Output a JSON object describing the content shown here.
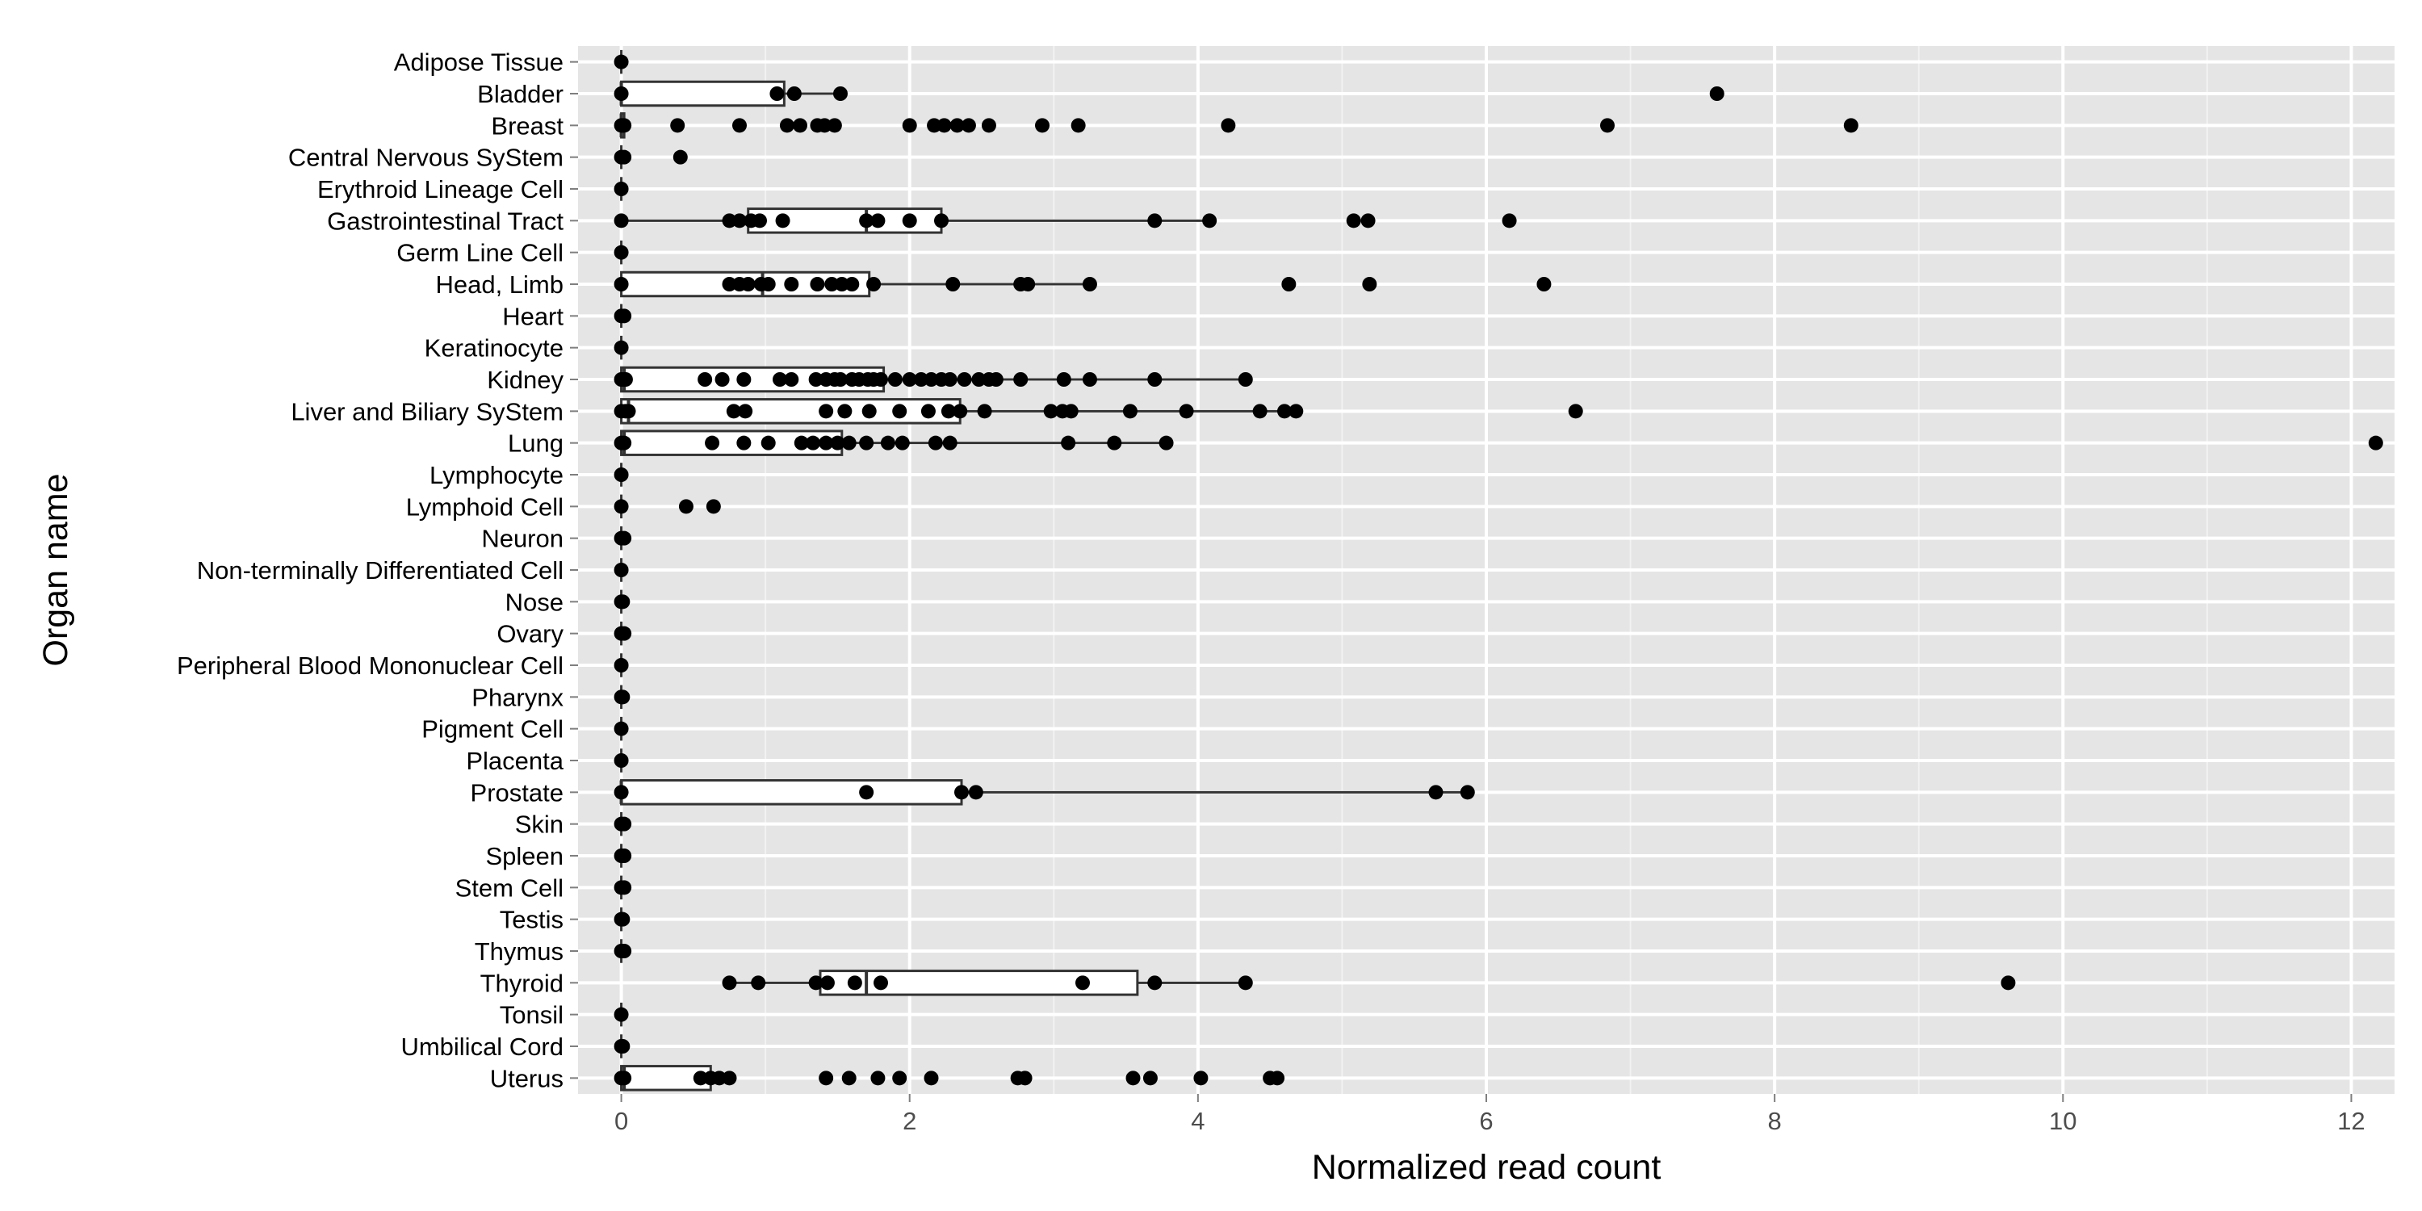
{
  "chart_data": {
    "type": "boxplot",
    "xlabel": "Normalized read count",
    "ylabel": "Organ name",
    "xlim": [
      -0.3,
      12.3
    ],
    "x_ticks": [
      0,
      2,
      4,
      6,
      8,
      10,
      12
    ],
    "grid": true,
    "colors": {
      "panel": "#e5e5e5",
      "grid_major": "#ffffff",
      "grid_minor": "#f2f2f2",
      "box_fill": "#ffffff",
      "line": "#333333",
      "point": "#000000",
      "tick_text": "#4d4d4d",
      "tick_mark": "#7f7f7f"
    },
    "categories": [
      {
        "name": "Adipose Tissue",
        "box": null,
        "points": [
          0
        ]
      },
      {
        "name": "Bladder",
        "box": {
          "q1": 0,
          "median": 0,
          "q3": 1.13,
          "wlow": 0,
          "whigh": 1.52
        },
        "points": [
          0,
          1.08,
          1.2,
          1.52,
          7.6
        ]
      },
      {
        "name": "Breast",
        "box": {
          "q1": 0,
          "median": 0,
          "q3": 0.02,
          "wlow": 0,
          "whigh": 0.02
        },
        "points": [
          0,
          0.01,
          0.02,
          0.39,
          0.82,
          1.15,
          1.24,
          1.36,
          1.41,
          1.48,
          2.0,
          2.17,
          2.24,
          2.33,
          2.41,
          2.55,
          2.92,
          3.17,
          4.21,
          6.84,
          8.53
        ]
      },
      {
        "name": "Central Nervous SyStem",
        "box": null,
        "points": [
          0,
          0.02,
          0.41
        ]
      },
      {
        "name": "Erythroid Lineage Cell",
        "box": null,
        "points": [
          0
        ]
      },
      {
        "name": "Gastrointestinal Tract",
        "box": {
          "q1": 0.88,
          "median": 1.7,
          "q3": 2.22,
          "wlow": 0,
          "whigh": 4.08
        },
        "points": [
          0,
          0.75,
          0.82,
          0.9,
          0.96,
          1.12,
          1.7,
          1.78,
          2.0,
          2.22,
          3.7,
          4.08,
          5.08,
          5.18,
          6.16
        ]
      },
      {
        "name": "Germ Line Cell",
        "box": null,
        "points": [
          0
        ]
      },
      {
        "name": "Head, Limb",
        "box": {
          "q1": 0,
          "median": 0.98,
          "q3": 1.72,
          "wlow": 0,
          "whigh": 3.25
        },
        "points": [
          0,
          0.75,
          0.82,
          0.88,
          0.97,
          1.02,
          1.18,
          1.36,
          1.46,
          1.53,
          1.6,
          1.75,
          2.3,
          2.77,
          2.82,
          3.25,
          4.63,
          5.19,
          6.4
        ]
      },
      {
        "name": "Heart",
        "box": null,
        "points": [
          0,
          0.02
        ]
      },
      {
        "name": "Keratinocyte",
        "box": null,
        "points": [
          0
        ]
      },
      {
        "name": "Kidney",
        "box": {
          "q1": 0,
          "median": 0.02,
          "q3": 1.82,
          "wlow": 0,
          "whigh": 4.33
        },
        "points": [
          0,
          0.02,
          0.03,
          0.58,
          0.7,
          0.85,
          1.1,
          1.18,
          1.35,
          1.42,
          1.48,
          1.52,
          1.6,
          1.65,
          1.71,
          1.75,
          1.8,
          1.9,
          2.0,
          2.08,
          2.15,
          2.22,
          2.28,
          2.38,
          2.48,
          2.55,
          2.6,
          2.77,
          3.07,
          3.25,
          3.7,
          4.33
        ]
      },
      {
        "name": "Liver and Biliary SyStem",
        "box": {
          "q1": 0,
          "median": 0.05,
          "q3": 2.35,
          "wlow": 0,
          "whigh": 4.68
        },
        "points": [
          0,
          0.03,
          0.05,
          0.78,
          0.86,
          1.42,
          1.55,
          1.72,
          1.93,
          2.13,
          2.27,
          2.35,
          2.52,
          2.98,
          3.06,
          3.12,
          3.53,
          3.92,
          4.43,
          4.6,
          4.68,
          6.62
        ]
      },
      {
        "name": "Lung",
        "box": {
          "q1": 0,
          "median": 0.02,
          "q3": 1.53,
          "wlow": 0,
          "whigh": 3.78
        },
        "points": [
          0,
          0.02,
          0.63,
          0.85,
          1.02,
          1.25,
          1.33,
          1.42,
          1.5,
          1.58,
          1.7,
          1.85,
          1.95,
          2.18,
          2.28,
          3.1,
          3.42,
          3.78,
          12.17
        ]
      },
      {
        "name": "Lymphocyte",
        "box": null,
        "points": [
          0
        ]
      },
      {
        "name": "Lymphoid Cell",
        "box": null,
        "points": [
          0,
          0.45,
          0.64
        ]
      },
      {
        "name": "Neuron",
        "box": null,
        "points": [
          0,
          0.02
        ]
      },
      {
        "name": "Non-terminally Differentiated Cell",
        "box": null,
        "points": [
          0
        ]
      },
      {
        "name": "Nose",
        "box": null,
        "points": [
          0,
          0.01
        ]
      },
      {
        "name": "Ovary",
        "box": null,
        "points": [
          0,
          0.02
        ]
      },
      {
        "name": "Peripheral Blood Mononuclear Cell",
        "box": null,
        "points": [
          0
        ]
      },
      {
        "name": "Pharynx",
        "box": null,
        "points": [
          0,
          0.01
        ]
      },
      {
        "name": "Pigment Cell",
        "box": null,
        "points": [
          0
        ]
      },
      {
        "name": "Placenta",
        "box": null,
        "points": [
          0
        ]
      },
      {
        "name": "Prostate",
        "box": {
          "q1": 0,
          "median": 0,
          "q3": 2.36,
          "wlow": 0,
          "whigh": 5.87
        },
        "points": [
          0,
          1.7,
          2.36,
          2.46,
          5.65,
          5.87
        ]
      },
      {
        "name": "Skin",
        "box": null,
        "points": [
          0,
          0.02
        ]
      },
      {
        "name": "Spleen",
        "box": null,
        "points": [
          0,
          0.02
        ]
      },
      {
        "name": "Stem Cell",
        "box": null,
        "points": [
          0,
          0.02
        ]
      },
      {
        "name": "Testis",
        "box": null,
        "points": [
          0,
          0.01
        ]
      },
      {
        "name": "Thymus",
        "box": null,
        "points": [
          0,
          0.02
        ]
      },
      {
        "name": "Thyroid",
        "box": {
          "q1": 1.38,
          "median": 1.7,
          "q3": 3.58,
          "wlow": 0.75,
          "whigh": 4.33
        },
        "points": [
          0.75,
          0.95,
          1.35,
          1.43,
          1.62,
          1.8,
          3.2,
          3.7,
          4.33,
          9.62
        ]
      },
      {
        "name": "Tonsil",
        "box": null,
        "points": [
          0
        ]
      },
      {
        "name": "Umbilical Cord",
        "box": null,
        "points": [
          0,
          0.01
        ]
      },
      {
        "name": "Uterus",
        "box": {
          "q1": 0,
          "median": 0.02,
          "q3": 0.62,
          "wlow": 0,
          "whigh": 0.75
        },
        "points": [
          0,
          0.02,
          0.55,
          0.62,
          0.68,
          0.75,
          1.42,
          1.58,
          1.78,
          1.93,
          2.15,
          2.75,
          2.8,
          3.55,
          3.67,
          4.02,
          4.5,
          4.55
        ]
      }
    ]
  }
}
